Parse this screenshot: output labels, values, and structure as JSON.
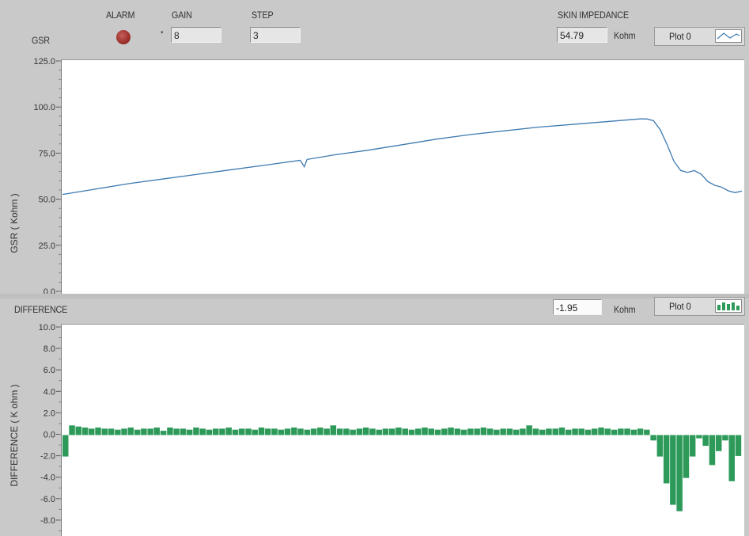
{
  "header": {
    "gsr_label": "GSR",
    "alarm_label": "ALARM",
    "gain_label": "GAIN",
    "gain_value": "8",
    "step_label": "STEP",
    "step_value": "3",
    "skin_impedance_label": "SKIN IMPEDANCE",
    "skin_impedance_value": "54.79",
    "skin_impedance_unit": "Kohm",
    "legend_label": "Plot 0"
  },
  "difference_header": {
    "label": "DIFFERENCE",
    "value": "-1.95",
    "unit": "Kohm",
    "legend_label": "Plot 0"
  },
  "colors": {
    "gsr_line": "#3d7ab0",
    "difference_bars": "#2e9a5a",
    "alarm_led": "#a03430",
    "panel_bg": "#c9c9c9"
  },
  "chart_data": [
    {
      "type": "line",
      "ylabel": "GSR ( Kohm )",
      "ylim": [
        0,
        125
      ],
      "yticks": [
        "125.0",
        "100.0",
        "75.0",
        "50.0",
        "25.0",
        "0.0"
      ],
      "ytick_values": [
        125,
        100,
        75,
        50,
        25,
        0
      ],
      "grid": false,
      "series": [
        {
          "x": [
            0,
            5,
            10,
            15,
            20,
            25,
            30,
            35,
            35.6,
            36,
            40,
            45,
            50,
            55,
            60,
            65,
            70,
            75,
            80,
            85,
            86,
            87,
            88,
            89,
            90,
            91,
            92,
            93,
            94,
            95,
            96,
            97,
            98,
            99,
            100
          ],
          "values": [
            53,
            56,
            59,
            61.5,
            64,
            66.5,
            69,
            71.5,
            68,
            72,
            74.5,
            77,
            80,
            83,
            85.5,
            87.5,
            89.5,
            91,
            92.5,
            94,
            94,
            93,
            88,
            80,
            71,
            66,
            65,
            66,
            64,
            60,
            58,
            57,
            55,
            54,
            54.8
          ]
        }
      ]
    },
    {
      "type": "bar",
      "ylabel": "DIFFERENCE ( K ohm )",
      "ylim": [
        -10,
        10
      ],
      "yticks": [
        "10.0",
        "8.0",
        "6.0",
        "4.0",
        "2.0",
        "0.0",
        "-2.0",
        "-4.0",
        "-6.0",
        "-8.0",
        "-10.0"
      ],
      "ytick_values": [
        10,
        8,
        6,
        4,
        2,
        0,
        -2,
        -4,
        -6,
        -8,
        -10
      ],
      "grid": false,
      "series": [
        {
          "values": [
            -2.0,
            0.9,
            0.8,
            0.7,
            0.6,
            0.7,
            0.6,
            0.6,
            0.5,
            0.6,
            0.7,
            0.5,
            0.6,
            0.6,
            0.7,
            0.4,
            0.7,
            0.6,
            0.6,
            0.5,
            0.7,
            0.6,
            0.5,
            0.6,
            0.6,
            0.7,
            0.5,
            0.6,
            0.6,
            0.5,
            0.7,
            0.6,
            0.6,
            0.5,
            0.6,
            0.7,
            0.6,
            0.5,
            0.6,
            0.7,
            0.6,
            0.9,
            0.6,
            0.6,
            0.5,
            0.6,
            0.7,
            0.6,
            0.5,
            0.6,
            0.6,
            0.7,
            0.6,
            0.5,
            0.6,
            0.7,
            0.6,
            0.5,
            0.6,
            0.7,
            0.6,
            0.5,
            0.6,
            0.6,
            0.7,
            0.6,
            0.5,
            0.6,
            0.6,
            0.5,
            0.6,
            0.9,
            0.6,
            0.5,
            0.6,
            0.6,
            0.7,
            0.5,
            0.6,
            0.6,
            0.5,
            0.6,
            0.7,
            0.6,
            0.5,
            0.6,
            0.6,
            0.5,
            0.6,
            0.5,
            -0.5,
            -2.0,
            -4.5,
            -6.5,
            -7.1,
            -4.0,
            -2.0,
            -0.3,
            -1.0,
            -2.8,
            -1.5,
            -0.5,
            -4.3,
            -1.95
          ]
        }
      ]
    }
  ]
}
